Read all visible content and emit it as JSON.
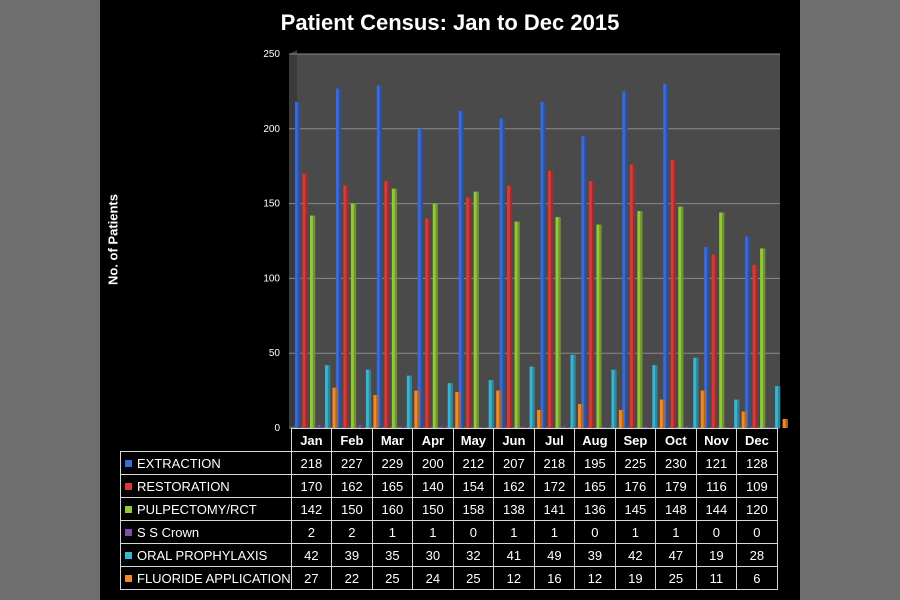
{
  "chart_data": {
    "type": "bar",
    "title": "Patient Census: Jan to Dec 2015",
    "xlabel": "",
    "ylabel": "No. of Patients",
    "ylim": [
      0,
      250
    ],
    "yticks": [
      "0",
      "50",
      "100",
      "150",
      "200",
      "250"
    ],
    "grid": true,
    "legend": "data table below chart",
    "categories": [
      "Jan",
      "Feb",
      "Mar",
      "Apr",
      "May",
      "Jun",
      "Jul",
      "Aug",
      "Sep",
      "Oct",
      "Nov",
      "Dec"
    ],
    "series": [
      {
        "name": "EXTRACTION",
        "color": "#3a6ad8",
        "values": [
          218,
          227,
          229,
          200,
          212,
          207,
          218,
          195,
          225,
          230,
          121,
          128
        ]
      },
      {
        "name": "RESTORATION",
        "color": "#d83a3a",
        "values": [
          170,
          162,
          165,
          140,
          154,
          162,
          172,
          165,
          176,
          179,
          116,
          109
        ]
      },
      {
        "name": "PULPECTOMY/RCT",
        "color": "#92c83a",
        "values": [
          142,
          150,
          160,
          150,
          158,
          138,
          141,
          136,
          145,
          148,
          144,
          120
        ]
      },
      {
        "name": "S S Crown",
        "color": "#7b4fb0",
        "values": [
          2,
          2,
          1,
          1,
          0,
          1,
          1,
          0,
          1,
          1,
          0,
          0
        ]
      },
      {
        "name": "ORAL PROPHYLAXIS",
        "color": "#3ab4d0",
        "values": [
          42,
          39,
          35,
          30,
          32,
          41,
          49,
          39,
          42,
          47,
          19,
          28
        ]
      },
      {
        "name": "FLUORIDE APPLICATION",
        "color": "#f08a2a",
        "values": [
          27,
          22,
          25,
          24,
          25,
          12,
          16,
          12,
          19,
          25,
          11,
          6
        ]
      }
    ]
  }
}
